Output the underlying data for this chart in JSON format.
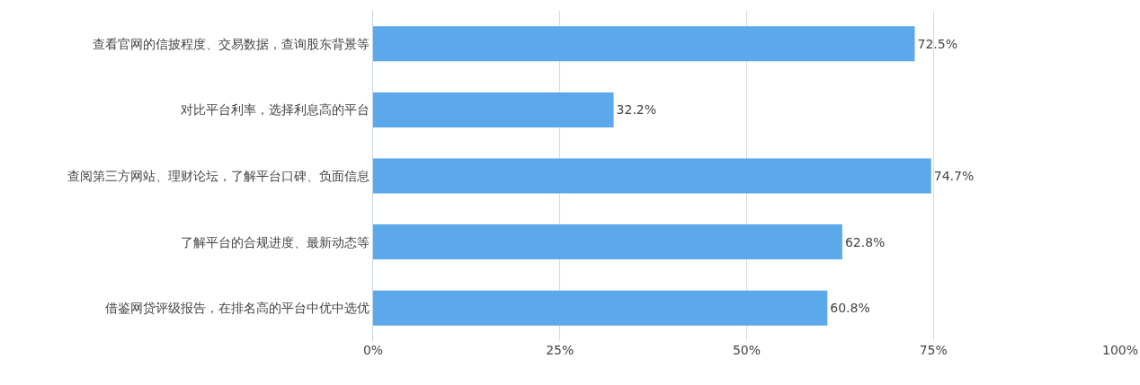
{
  "chart_data": {
    "type": "bar",
    "orientation": "horizontal",
    "categories": [
      "查看官网的信披程度、交易数据，查询股东背景等",
      "对比平台利率，选择利息高的平台",
      "查阅第三方网站、理财论坛，了解平台口碑、负面信息",
      "了解平台的合规进度、最新动态等",
      "借鉴网贷评级报告，在排名高的平台中优中选优"
    ],
    "values": [
      72.5,
      32.2,
      74.7,
      62.8,
      60.8
    ],
    "value_labels": [
      "72.5%",
      "32.2%",
      "74.7%",
      "62.8%",
      "60.8%"
    ],
    "color": "#5ba8ea",
    "xlim": [
      0,
      100
    ],
    "xticks": [
      {
        "value": 0,
        "label": "0%"
      },
      {
        "value": 25,
        "label": "25%"
      },
      {
        "value": 50,
        "label": "50%"
      },
      {
        "value": 75,
        "label": "75%"
      },
      {
        "value": 100,
        "label": "100%"
      }
    ],
    "grid": "x"
  }
}
